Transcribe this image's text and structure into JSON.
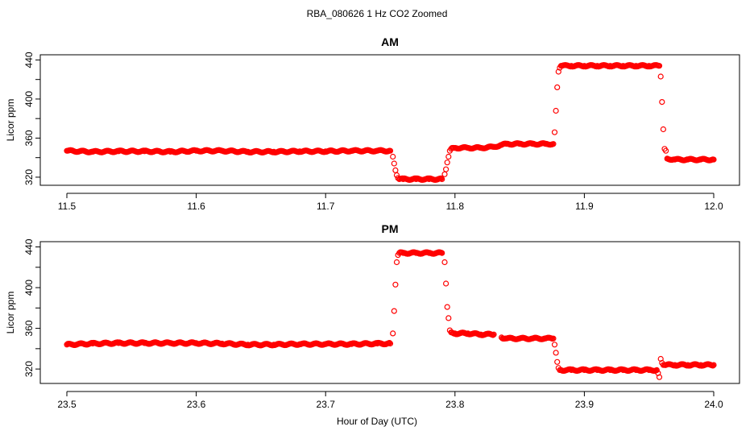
{
  "title": "RBA_080626  1 Hz CO2 Zoomed",
  "xlabel": "Hour of Day (UTC)",
  "colors": {
    "points": "#ff0000",
    "axes": "#000000",
    "background": "#ffffff"
  },
  "chart_data": [
    {
      "type": "scatter",
      "title": "AM",
      "xlabel": "",
      "ylabel": "Licor ppm",
      "xlim": [
        11.5,
        12.0
      ],
      "ylim": [
        315,
        442
      ],
      "x_ticks": [
        "11.5",
        "11.6",
        "11.7",
        "11.8",
        "11.9",
        "12.0"
      ],
      "y_ticks": [
        "320",
        "360",
        "400",
        "440"
      ],
      "grid": false,
      "marker": "open-circle",
      "series": [
        {
          "x": [
            11.5,
            11.52,
            11.54,
            11.56,
            11.58,
            11.6,
            11.62,
            11.64,
            11.66,
            11.68,
            11.7,
            11.72,
            11.74,
            11.75,
            11.752,
            11.753,
            11.754,
            11.755,
            11.756,
            11.757,
            11.76,
            11.77,
            11.78,
            11.79,
            11.792,
            11.793,
            11.794,
            11.795,
            11.796,
            11.797,
            11.8,
            11.81,
            11.82,
            11.83,
            11.836,
            11.84,
            11.85,
            11.86,
            11.87,
            11.876,
            11.877,
            11.878,
            11.879,
            11.88,
            11.881,
            11.882,
            11.89,
            11.9,
            11.91,
            11.92,
            11.93,
            11.94,
            11.95,
            11.958,
            11.959,
            11.96,
            11.961,
            11.962,
            11.963,
            11.964,
            11.97,
            11.98,
            11.99,
            12.0
          ],
          "y": [
            347,
            346,
            346.5,
            346.5,
            346,
            347,
            347,
            346,
            346,
            346.5,
            346.5,
            347,
            347,
            347,
            341,
            334,
            327,
            322,
            319,
            318,
            318,
            318,
            318,
            318,
            323,
            328,
            335,
            341,
            347,
            349,
            350,
            350,
            350,
            351,
            353,
            354,
            354,
            354,
            354,
            354,
            366,
            388,
            412,
            428,
            432,
            434,
            434,
            434,
            434,
            434,
            434,
            434,
            434,
            434,
            423,
            397,
            369,
            349,
            347,
            339,
            338,
            338,
            338,
            338
          ]
        }
      ]
    },
    {
      "type": "scatter",
      "title": "PM",
      "xlabel": "",
      "ylabel": "Licor ppm",
      "xlim": [
        23.5,
        24.0
      ],
      "ylim": [
        309,
        442
      ],
      "x_ticks": [
        "23.5",
        "23.6",
        "23.7",
        "23.8",
        "23.9",
        "24.0"
      ],
      "y_ticks": [
        "320",
        "360",
        "400",
        "440"
      ],
      "grid": false,
      "marker": "open-circle",
      "series": [
        {
          "x": [
            23.5,
            23.52,
            23.54,
            23.56,
            23.58,
            23.6,
            23.62,
            23.64,
            23.66,
            23.68,
            23.7,
            23.72,
            23.74,
            23.75,
            23.752,
            23.753,
            23.754,
            23.755,
            23.756,
            23.757,
            23.76,
            23.77,
            23.78,
            23.79,
            23.792,
            23.793,
            23.794,
            23.795,
            23.796,
            23.797,
            23.8,
            23.81,
            23.82,
            23.83,
            23.836,
            23.84,
            23.85,
            23.86,
            23.87,
            23.876,
            23.877,
            23.878,
            23.879,
            23.88,
            23.881,
            23.882,
            23.89,
            23.9,
            23.91,
            23.92,
            23.93,
            23.94,
            23.95,
            23.956,
            23.957,
            23.958,
            23.959,
            23.96,
            23.961,
            23.962,
            23.97,
            23.98,
            23.99,
            24.0
          ],
          "y": [
            344,
            345,
            345.5,
            345.5,
            345.5,
            345.5,
            345,
            344,
            344,
            344.5,
            344.5,
            344.5,
            345,
            345,
            355,
            377,
            403,
            425,
            432,
            434,
            434,
            434,
            434,
            434,
            425,
            404,
            381,
            370,
            358,
            356,
            355,
            355,
            354,
            354,
            351,
            350,
            350,
            350,
            350,
            350,
            344,
            336,
            327,
            321,
            319,
            319,
            319,
            319,
            319,
            319,
            319,
            319,
            319,
            319,
            316,
            312,
            330,
            326,
            324,
            324,
            324,
            324,
            324,
            324
          ]
        }
      ]
    }
  ]
}
